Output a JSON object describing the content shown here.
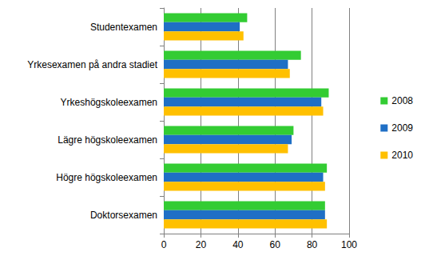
{
  "chart_data": {
    "type": "bar",
    "orientation": "horizontal",
    "categories": [
      "Studentexamen",
      "Yrkesexamen på andra stadiet",
      "Yrkeshögskoleexamen",
      "Lägre högskoleexamen",
      "Högre högskoleexamen",
      "Doktorsexamen"
    ],
    "series": [
      {
        "name": "2008",
        "color": "#33cc33",
        "values": [
          45,
          74,
          89,
          70,
          88,
          87
        ]
      },
      {
        "name": "2009",
        "color": "#1f6fc5",
        "values": [
          41,
          67,
          85,
          69,
          86,
          87
        ]
      },
      {
        "name": "2010",
        "color": "#ffc000",
        "values": [
          43,
          68,
          86,
          67,
          87,
          88
        ]
      }
    ],
    "xlim": [
      0,
      100
    ],
    "xticks": [
      0,
      20,
      40,
      60,
      80,
      100
    ],
    "grid": true,
    "legend": "right"
  }
}
